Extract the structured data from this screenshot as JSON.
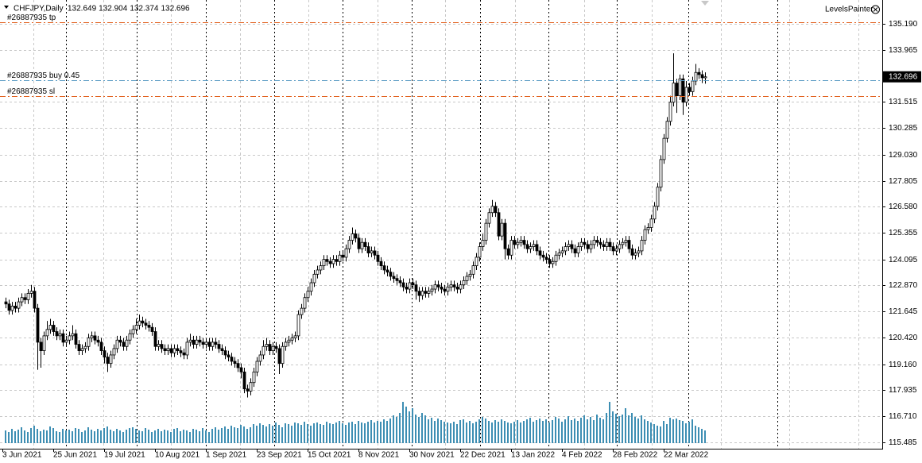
{
  "chart_data": {
    "type": "candlestick",
    "title": "CHFJPY,Daily",
    "indicator_label": "LevelsPainter",
    "candle_color": "#000000",
    "volume_color": "#3d8eb3",
    "grid": true,
    "ylim": [
      115.186,
      136.312
    ],
    "yticks": [
      {
        "value": 135.19,
        "label": "135.190"
      },
      {
        "value": 133.965,
        "label": "133.965"
      },
      {
        "value": 131.515,
        "label": "131.515"
      },
      {
        "value": 130.285,
        "label": "130.285"
      },
      {
        "value": 129.03,
        "label": "129.030"
      },
      {
        "value": 127.805,
        "label": "127.805"
      },
      {
        "value": 126.58,
        "label": "126.580"
      },
      {
        "value": 125.355,
        "label": "125.355"
      },
      {
        "value": 124.095,
        "label": "124.095"
      },
      {
        "value": 122.87,
        "label": "122.870"
      },
      {
        "value": 121.645,
        "label": "121.645"
      },
      {
        "value": 120.42,
        "label": "120.420"
      },
      {
        "value": 119.16,
        "label": "119.160"
      },
      {
        "value": 117.935,
        "label": "117.935"
      },
      {
        "value": 116.71,
        "label": "116.710"
      },
      {
        "value": 115.485,
        "label": "115.485"
      }
    ],
    "levels": [
      {
        "label": "#26887935 tp",
        "value": 135.26,
        "color": "#e2611f"
      },
      {
        "label": "#26887935 buy 0.45",
        "value": 132.53,
        "color": "#5b9bc4"
      },
      {
        "label": "#26887935 sl",
        "value": 131.79,
        "color": "#e2611f"
      }
    ],
    "categories": [
      "3 Jun 2021",
      null,
      null,
      null,
      null,
      null,
      null,
      null,
      null,
      null,
      null,
      null,
      null,
      null,
      null,
      null,
      "25 Jun 2021",
      null,
      null,
      null,
      null,
      null,
      null,
      null,
      null,
      null,
      null,
      null,
      null,
      null,
      null,
      null,
      "19 Jul 2021",
      null,
      null,
      null,
      null,
      null,
      null,
      null,
      null,
      null,
      null,
      null,
      null,
      null,
      null,
      null,
      "10 Aug 2021",
      null,
      null,
      null,
      null,
      null,
      null,
      null,
      null,
      null,
      null,
      null,
      null,
      null,
      null,
      null,
      "1 Sep 2021",
      null,
      null,
      null,
      null,
      null,
      null,
      null,
      null,
      null,
      null,
      null,
      null,
      null,
      null,
      null,
      "23 Sep 2021",
      null,
      null,
      null,
      null,
      null,
      null,
      null,
      null,
      null,
      null,
      null,
      null,
      null,
      null,
      null,
      "15 Oct 2021",
      null,
      null,
      null,
      null,
      null,
      null,
      null,
      null,
      null,
      null,
      null,
      null,
      null,
      null,
      null,
      "8 Nov 2021",
      null,
      null,
      null,
      null,
      null,
      null,
      null,
      null,
      null,
      null,
      null,
      null,
      null,
      null,
      null,
      "30 Nov 2021",
      null,
      null,
      null,
      null,
      null,
      null,
      null,
      null,
      null,
      null,
      null,
      null,
      null,
      null,
      null,
      "22 Dec 2021",
      null,
      null,
      null,
      null,
      null,
      null,
      null,
      null,
      null,
      null,
      null,
      null,
      null,
      null,
      null,
      "13 Jan 2022",
      null,
      null,
      null,
      null,
      null,
      null,
      null,
      null,
      null,
      null,
      null,
      null,
      null,
      null,
      null,
      "4 Feb 2022",
      null,
      null,
      null,
      null,
      null,
      null,
      null,
      null,
      null,
      null,
      null,
      null,
      null,
      null,
      null,
      "28 Feb 2022",
      null,
      null,
      null,
      null,
      null,
      null,
      null,
      null,
      null,
      null,
      null,
      null,
      null,
      null,
      null,
      "22 Mar 2022",
      null,
      null,
      null,
      null,
      null,
      null,
      null,
      null,
      null,
      null,
      null,
      null
    ],
    "open": [
      122.1,
      122.0,
      121.7,
      121.9,
      121.8,
      122.1,
      122.3,
      122.2,
      122.5,
      122.6,
      121.8,
      120.2,
      119.8,
      120.5,
      120.8,
      121.0,
      120.7,
      120.5,
      120.6,
      120.2,
      120.3,
      120.5,
      120.6,
      120.1,
      119.8,
      119.9,
      120.0,
      120.4,
      120.5,
      120.3,
      120.2,
      119.8,
      119.5,
      119.2,
      119.6,
      119.9,
      120.3,
      120.2,
      120.0,
      120.3,
      120.6,
      120.8,
      121.0,
      121.2,
      121.1,
      121.0,
      120.9,
      120.7,
      120.0,
      120.1,
      119.9,
      119.8,
      119.9,
      119.7,
      119.9,
      119.8,
      119.7,
      119.6,
      120.2,
      120.3,
      120.1,
      120.3,
      120.2,
      120.1,
      120.2,
      120.0,
      120.2,
      120.1,
      119.9,
      119.8,
      119.6,
      119.5,
      119.3,
      119.2,
      119.0,
      118.8,
      118.0,
      117.9,
      118.3,
      118.8,
      119.3,
      119.6,
      120.0,
      120.1,
      119.8,
      120.0,
      119.9,
      119.2,
      120.0,
      120.2,
      120.3,
      120.4,
      120.5,
      121.5,
      121.8,
      122.3,
      122.6,
      123.0,
      123.4,
      123.6,
      123.8,
      124.1,
      124.0,
      123.9,
      124.1,
      124.0,
      124.3,
      124.2,
      124.6,
      125.0,
      125.3,
      125.1,
      124.6,
      124.9,
      124.7,
      124.4,
      124.5,
      124.3,
      124.0,
      123.8,
      123.6,
      123.5,
      123.3,
      123.2,
      123.1,
      123.0,
      122.8,
      122.7,
      123.0,
      122.9,
      122.6,
      122.4,
      122.6,
      122.5,
      122.6,
      122.7,
      122.9,
      122.8,
      122.7,
      122.6,
      122.8,
      122.9,
      122.8,
      122.7,
      122.9,
      123.1,
      123.3,
      123.4,
      123.8,
      124.2,
      124.7,
      125.0,
      125.8,
      126.3,
      126.6,
      126.3,
      125.2,
      125.8,
      124.6,
      124.3,
      125.0,
      124.8,
      124.9,
      125.0,
      124.8,
      124.6,
      124.7,
      124.8,
      124.5,
      124.3,
      124.2,
      124.1,
      123.9,
      124.0,
      124.3,
      124.4,
      124.5,
      124.7,
      124.8,
      124.6,
      124.4,
      124.7,
      124.9,
      124.8,
      124.6,
      124.8,
      125.0,
      124.9,
      124.8,
      124.7,
      124.9,
      124.7,
      124.5,
      124.6,
      124.8,
      124.9,
      125.0,
      124.6,
      124.3,
      124.4,
      124.5,
      125.0,
      125.5,
      125.6,
      126.0,
      126.6,
      127.5,
      128.8,
      129.8,
      130.6,
      131.5,
      132.4,
      131.8,
      132.6,
      131.5,
      132.2,
      132.0,
      132.5,
      132.9,
      132.8,
      132.649
    ],
    "high": [
      122.3,
      122.2,
      122.1,
      122.1,
      122.3,
      122.5,
      122.5,
      122.7,
      122.9,
      122.8,
      122.0,
      120.4,
      120.7,
      121.2,
      121.3,
      121.2,
      120.9,
      120.8,
      120.8,
      120.5,
      120.7,
      121.0,
      120.8,
      120.3,
      120.1,
      120.2,
      120.6,
      120.7,
      120.7,
      120.5,
      120.4,
      120.0,
      119.7,
      119.8,
      120.1,
      120.5,
      120.5,
      120.4,
      120.5,
      120.8,
      121.0,
      121.3,
      121.5,
      121.4,
      121.3,
      121.2,
      121.1,
      120.9,
      120.3,
      120.3,
      120.1,
      120.1,
      120.1,
      120.1,
      120.1,
      120.0,
      119.9,
      120.4,
      120.6,
      120.5,
      120.5,
      120.5,
      120.4,
      120.4,
      120.4,
      120.4,
      120.4,
      120.3,
      120.1,
      120.0,
      119.8,
      119.7,
      119.5,
      119.4,
      119.2,
      119.0,
      118.2,
      118.5,
      119.0,
      119.5,
      119.8,
      120.3,
      120.4,
      120.3,
      120.2,
      120.2,
      120.1,
      120.2,
      120.4,
      120.5,
      120.6,
      120.7,
      121.7,
      122.0,
      122.5,
      122.8,
      123.2,
      123.6,
      123.8,
      124.0,
      124.3,
      124.3,
      124.2,
      124.3,
      124.3,
      124.5,
      124.5,
      124.8,
      125.2,
      125.6,
      125.5,
      125.3,
      125.1,
      125.1,
      124.9,
      124.7,
      124.7,
      124.5,
      124.2,
      124.0,
      123.8,
      123.7,
      123.5,
      123.4,
      123.3,
      123.2,
      123.0,
      123.2,
      123.2,
      123.1,
      122.8,
      122.8,
      122.8,
      122.8,
      122.9,
      123.1,
      123.1,
      123.0,
      122.9,
      123.0,
      123.1,
      123.1,
      123.0,
      123.1,
      123.3,
      123.5,
      123.6,
      124.0,
      124.4,
      124.9,
      125.3,
      126.0,
      126.5,
      126.9,
      126.8,
      126.5,
      126.0,
      126.0,
      124.8,
      125.2,
      125.2,
      125.1,
      125.2,
      125.2,
      125.0,
      124.9,
      125.0,
      125.0,
      124.7,
      124.5,
      124.4,
      124.3,
      124.2,
      124.5,
      124.6,
      124.7,
      124.9,
      125.0,
      125.0,
      124.8,
      124.9,
      125.1,
      125.1,
      125.0,
      125.0,
      125.2,
      125.2,
      125.1,
      125.0,
      125.1,
      125.1,
      124.9,
      124.8,
      125.0,
      125.1,
      125.2,
      125.2,
      124.8,
      124.6,
      124.7,
      125.2,
      125.7,
      125.8,
      126.2,
      126.8,
      127.7,
      129.0,
      130.0,
      130.8,
      131.8,
      133.8,
      132.6,
      132.8,
      132.8,
      132.5,
      132.4,
      132.7,
      133.3,
      133.1,
      133.0,
      132.904
    ],
    "low": [
      121.8,
      121.5,
      121.5,
      121.6,
      121.6,
      121.9,
      122.0,
      122.0,
      122.3,
      121.6,
      118.9,
      119.0,
      119.6,
      120.3,
      120.6,
      120.5,
      120.3,
      120.3,
      120.0,
      120.0,
      120.1,
      120.3,
      119.9,
      119.6,
      119.6,
      119.7,
      119.8,
      120.2,
      120.1,
      120.0,
      119.6,
      119.2,
      118.8,
      119.0,
      119.4,
      119.7,
      120.0,
      119.8,
      119.8,
      120.1,
      120.4,
      120.6,
      120.8,
      120.9,
      120.8,
      120.7,
      120.5,
      119.8,
      119.8,
      119.7,
      119.6,
      119.6,
      119.5,
      119.5,
      119.6,
      119.5,
      119.4,
      119.4,
      120.0,
      119.9,
      119.9,
      120.0,
      119.9,
      119.9,
      119.8,
      119.8,
      119.9,
      119.7,
      119.6,
      119.4,
      119.3,
      119.1,
      119.0,
      118.8,
      118.5,
      117.8,
      117.6,
      117.7,
      118.1,
      118.6,
      119.1,
      119.4,
      119.8,
      119.6,
      119.6,
      119.7,
      118.7,
      119.0,
      119.8,
      120.0,
      120.1,
      120.2,
      120.3,
      121.3,
      121.6,
      122.1,
      122.4,
      122.8,
      123.2,
      123.4,
      123.6,
      123.8,
      123.7,
      123.7,
      123.8,
      123.8,
      124.0,
      124.0,
      124.4,
      124.8,
      124.9,
      124.4,
      124.4,
      124.5,
      124.2,
      124.2,
      124.1,
      123.8,
      123.6,
      123.4,
      123.3,
      123.1,
      123.0,
      122.9,
      122.8,
      122.6,
      122.5,
      122.5,
      122.7,
      122.2,
      122.1,
      122.2,
      122.3,
      122.3,
      122.4,
      122.5,
      122.6,
      122.5,
      122.4,
      122.4,
      122.6,
      122.6,
      122.5,
      122.5,
      122.7,
      122.9,
      123.1,
      123.2,
      123.6,
      124.0,
      124.5,
      124.8,
      125.6,
      126.1,
      126.1,
      125.0,
      125.0,
      124.1,
      124.1,
      124.1,
      124.6,
      124.6,
      124.7,
      124.6,
      124.4,
      124.4,
      124.5,
      124.3,
      124.1,
      124.0,
      123.9,
      123.7,
      123.7,
      123.8,
      124.1,
      124.2,
      124.3,
      124.5,
      124.4,
      124.2,
      124.2,
      124.5,
      124.6,
      124.4,
      124.4,
      124.6,
      124.7,
      124.6,
      124.5,
      124.5,
      124.5,
      124.3,
      124.3,
      124.4,
      124.6,
      124.7,
      124.4,
      124.1,
      124.1,
      124.2,
      124.3,
      124.8,
      125.3,
      125.4,
      125.8,
      126.4,
      127.3,
      128.6,
      129.6,
      130.4,
      131.3,
      131.0,
      131.6,
      130.9,
      131.3,
      131.8,
      131.8,
      132.3,
      132.6,
      132.4,
      132.374
    ],
    "close": [
      122.0,
      121.7,
      121.9,
      121.8,
      122.1,
      122.3,
      122.2,
      122.5,
      122.6,
      121.8,
      120.2,
      119.8,
      120.5,
      120.8,
      121.0,
      120.7,
      120.5,
      120.6,
      120.2,
      120.3,
      120.5,
      120.6,
      120.1,
      119.8,
      119.9,
      120.0,
      120.4,
      120.5,
      120.3,
      120.2,
      119.8,
      119.5,
      119.2,
      119.6,
      119.9,
      120.3,
      120.2,
      120.0,
      120.3,
      120.6,
      120.8,
      121.0,
      121.2,
      121.1,
      121.0,
      120.9,
      120.7,
      120.0,
      120.1,
      119.9,
      119.8,
      119.9,
      119.7,
      119.9,
      119.8,
      119.7,
      119.6,
      120.2,
      120.3,
      120.1,
      120.3,
      120.2,
      120.1,
      120.2,
      120.0,
      120.2,
      120.1,
      119.9,
      119.8,
      119.6,
      119.5,
      119.3,
      119.2,
      119.0,
      118.8,
      118.0,
      117.9,
      118.3,
      118.8,
      119.3,
      119.6,
      120.0,
      120.1,
      119.8,
      120.0,
      119.9,
      119.2,
      120.0,
      120.2,
      120.3,
      120.4,
      120.5,
      121.5,
      121.8,
      122.3,
      122.6,
      123.0,
      123.4,
      123.6,
      123.8,
      124.1,
      124.0,
      123.9,
      124.1,
      124.0,
      124.3,
      124.2,
      124.6,
      125.0,
      125.3,
      125.1,
      124.6,
      124.9,
      124.7,
      124.4,
      124.5,
      124.3,
      124.0,
      123.8,
      123.6,
      123.5,
      123.3,
      123.2,
      123.1,
      123.0,
      122.8,
      122.7,
      123.0,
      122.9,
      122.6,
      122.4,
      122.6,
      122.5,
      122.6,
      122.7,
      122.9,
      122.8,
      122.7,
      122.6,
      122.8,
      122.9,
      122.8,
      122.7,
      122.9,
      123.1,
      123.3,
      123.4,
      123.8,
      124.2,
      124.7,
      125.0,
      125.8,
      126.3,
      126.6,
      126.3,
      125.2,
      125.8,
      124.6,
      124.3,
      125.0,
      124.8,
      124.9,
      125.0,
      124.8,
      124.6,
      124.7,
      124.8,
      124.5,
      124.3,
      124.2,
      124.1,
      123.9,
      124.0,
      124.3,
      124.4,
      124.5,
      124.7,
      124.8,
      124.6,
      124.4,
      124.7,
      124.9,
      124.8,
      124.6,
      124.8,
      125.0,
      124.9,
      124.8,
      124.7,
      124.9,
      124.7,
      124.5,
      124.6,
      124.8,
      124.9,
      125.0,
      124.6,
      124.3,
      124.4,
      124.5,
      125.0,
      125.5,
      125.6,
      126.0,
      126.6,
      127.5,
      128.8,
      129.8,
      130.6,
      131.5,
      132.4,
      131.8,
      132.6,
      131.5,
      132.2,
      132.0,
      132.5,
      132.9,
      132.8,
      132.65,
      132.696
    ],
    "volume": [
      16,
      14,
      18,
      15,
      17,
      20,
      16,
      14,
      19,
      22,
      18,
      15,
      17,
      16,
      21,
      19,
      15,
      14,
      18,
      16,
      17,
      15,
      19,
      18,
      14,
      16,
      20,
      17,
      15,
      18,
      16,
      19,
      21,
      17,
      15,
      18,
      16,
      14,
      17,
      19,
      20,
      18,
      16,
      15,
      19,
      17,
      14,
      16,
      18,
      15,
      17,
      16,
      14,
      18,
      19,
      15,
      17,
      16,
      14,
      18,
      17,
      15,
      19,
      16,
      14,
      18,
      20,
      17,
      19,
      21,
      18,
      22,
      20,
      19,
      23,
      21,
      18,
      20,
      24,
      22,
      25,
      23,
      21,
      24,
      22,
      26,
      23,
      20,
      25,
      24,
      22,
      26,
      25,
      23,
      27,
      24,
      22,
      25,
      26,
      24,
      23,
      27,
      25,
      24,
      26,
      28,
      25,
      23,
      26,
      27,
      24,
      28,
      26,
      25,
      27,
      29,
      26,
      28,
      27,
      30,
      28,
      31,
      35,
      33,
      38,
      52,
      46,
      40,
      44,
      36,
      33,
      38,
      35,
      30,
      32,
      28,
      31,
      29,
      27,
      26,
      25,
      27,
      24,
      29,
      30,
      26,
      28,
      25,
      27,
      30,
      33,
      31,
      28,
      26,
      29,
      27,
      30,
      28,
      26,
      25,
      27,
      29,
      26,
      28,
      30,
      32,
      27,
      29,
      31,
      28,
      30,
      26,
      29,
      33,
      31,
      27,
      30,
      34,
      29,
      31,
      28,
      32,
      35,
      30,
      33,
      29,
      36,
      32,
      30,
      38,
      52,
      40,
      37,
      34,
      36,
      44,
      35,
      38,
      33,
      31,
      35,
      30,
      28,
      26,
      24,
      22,
      21,
      28,
      24,
      32,
      30,
      31,
      29,
      28,
      25,
      27,
      30,
      22,
      20,
      18,
      16
    ]
  }
}
